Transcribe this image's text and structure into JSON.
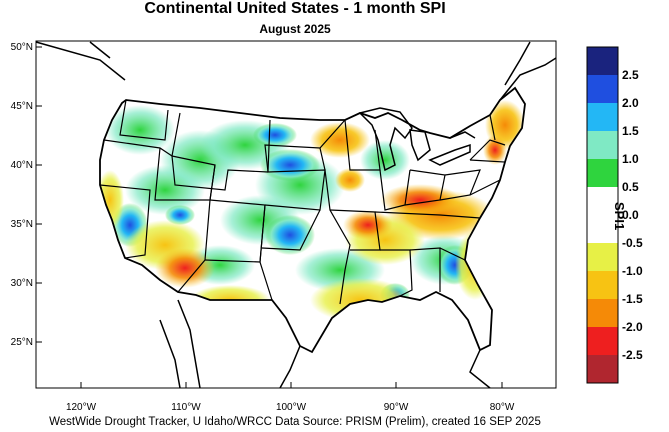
{
  "title": "Continental United States - 1 month SPI",
  "subtitle": "August 2025",
  "footer": "WestWide Drought Tracker, U Idaho/WRCC Data Source: PRISM (Prelim), created 16 SEP 2025",
  "lat_labels": [
    "50°N",
    "45°N",
    "40°N",
    "35°N",
    "30°N",
    "25°N"
  ],
  "lon_labels": [
    "120°W",
    "110°W",
    "100°W",
    "90°W",
    "80°W"
  ],
  "colorbar": {
    "title": "SPI1",
    "ticks": [
      "2.5",
      "2.0",
      "1.5",
      "1.0",
      "0.5",
      "0.0",
      "-0.5",
      "-1.0",
      "-1.5",
      "-2.0",
      "-2.5"
    ],
    "colors": [
      "#1a237e",
      "#1f4fe0",
      "#23b7f5",
      "#7fe9c4",
      "#2fd43e",
      "#ffffff",
      "#ffffff",
      "#e7f046",
      "#f7c313",
      "#f58a07",
      "#ee1f1f",
      "#b0262f"
    ]
  },
  "colors": {
    "ocean": "#ffffff",
    "no_data": "#ffffff"
  }
}
